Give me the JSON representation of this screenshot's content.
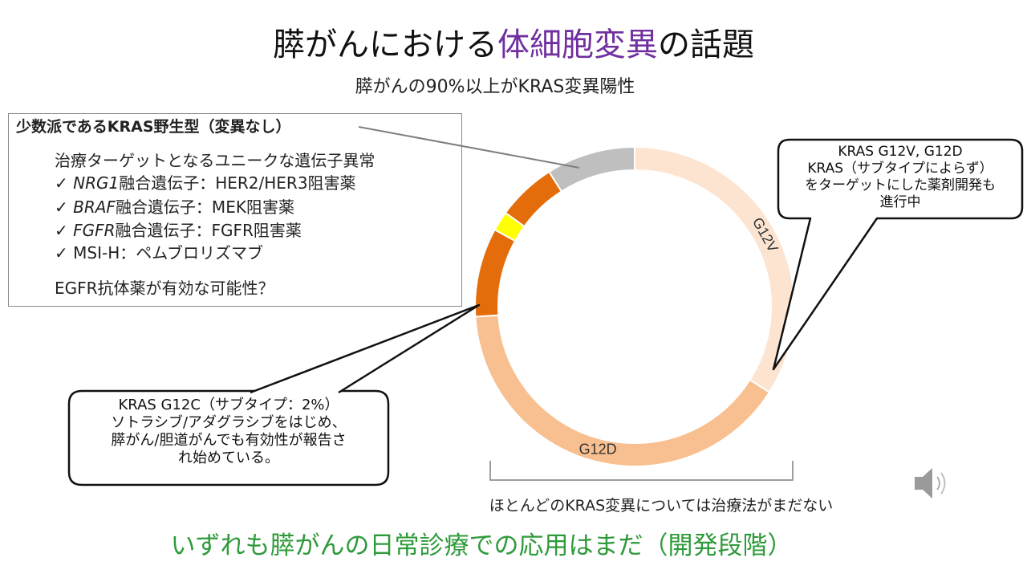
{
  "slide": {
    "title_part1": "膵がんにおける",
    "title_highlight": "体細胞変異",
    "title_part2": "の話題",
    "subtitle": "膵がんの90%以上がKRAS変異陽性",
    "bottom_line": "いずれも膵がんの日常診療での応用はまだ（開発段階）",
    "bracket_caption": "ほとんどのKRAS変異については治療法がまだない",
    "speaker_icon": "speaker-icon"
  },
  "info_box": {
    "heading": "少数派であるKRAS野生型（変異なし）",
    "intro": "治療ターゲットとなるユニークな遺伝子異常",
    "check_mark": "✓",
    "items": [
      {
        "gene": "NRG1",
        "text": "融合遺伝子：HER2/HER3阻害薬"
      },
      {
        "gene": "BRAF",
        "text": "融合遺伝子：MEK阻害薬"
      },
      {
        "gene": "FGFR",
        "text": "融合遺伝子：FGFR阻害薬"
      },
      {
        "gene": "",
        "text": "MSI-H：ペムブロリズマブ"
      }
    ],
    "footer": "EGFR抗体薬が有効な可能性？"
  },
  "callouts": {
    "right": [
      "KRAS G12V, G12D",
      "KRAS（サブタイプによらず）",
      "をターゲットにした薬剤開発も",
      "進行中"
    ],
    "left": [
      "KRAS G12C（サブタイプ：2%）",
      "ソトラシブ/アダグラシブをはじめ、",
      "膵がん/胆道がんでも有効性が報告さ",
      "れ始めている。"
    ]
  },
  "chart_data": {
    "type": "pie",
    "variant": "donut",
    "start": "12 o'clock, clockwise",
    "segments": [
      {
        "label": "G12V",
        "value": 34,
        "color": "#fce4d1",
        "show_label": true
      },
      {
        "label": "G12D",
        "value": 40,
        "color": "#f8c090",
        "show_label": true
      },
      {
        "label": "other",
        "value": 9,
        "color": "#e46c0a",
        "show_label": false
      },
      {
        "label": "G12C",
        "value": 2,
        "color": "#ffff00",
        "show_label": false
      },
      {
        "label": "other",
        "value": 6,
        "color": "#e46c0a",
        "show_label": false
      },
      {
        "label": "wild-type",
        "value": 9,
        "color": "#bfbfbf",
        "show_label": false
      }
    ]
  }
}
